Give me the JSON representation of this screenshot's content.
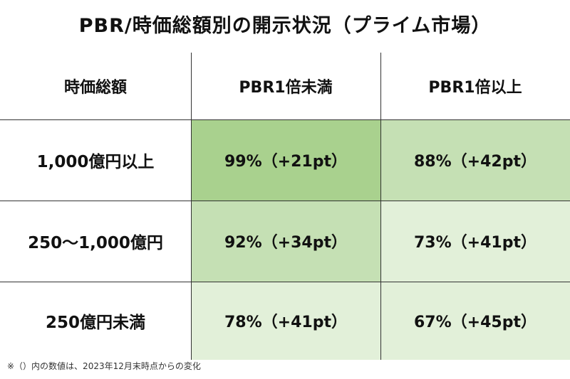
{
  "title": "PBR/時価総額別の開示状況（プライム市場）",
  "headers": [
    "時価総額",
    "PBR1倍未満",
    "PBR1倍以上"
  ],
  "rows": [
    {
      "label": "1,000億円以上",
      "cells": [
        "99%（+21pt）",
        "88%（+42pt）"
      ],
      "colors": [
        "#a9d18e",
        "#c5e0b4"
      ]
    },
    {
      "label": "250～1,000億円",
      "cells": [
        "92%（+34pt）",
        "73%（+41pt）"
      ],
      "colors": [
        "#c5e0b4",
        "#e2f0d9"
      ]
    },
    {
      "label": "250億円未満",
      "cells": [
        "78%（+41pt）",
        "67%（+45pt）"
      ],
      "colors": [
        "#e2f0d9",
        "#e2f0d9"
      ]
    }
  ],
  "footnote": "※（）内の数値は、2023年12月末時点からの変化",
  "chart_data": {
    "type": "table",
    "title": "PBR/時価総額別の開示状況（プライム市場）",
    "columns": [
      "時価総額",
      "PBR1倍未満",
      "PBR1倍以上"
    ],
    "rows": [
      [
        "1,000億円以上",
        "99%（+21pt）",
        "88%（+42pt）"
      ],
      [
        "250～1,000億円",
        "92%（+34pt）",
        "73%（+41pt）"
      ],
      [
        "250億円未満",
        "78%（+41pt）",
        "67%（+45pt）"
      ]
    ]
  }
}
